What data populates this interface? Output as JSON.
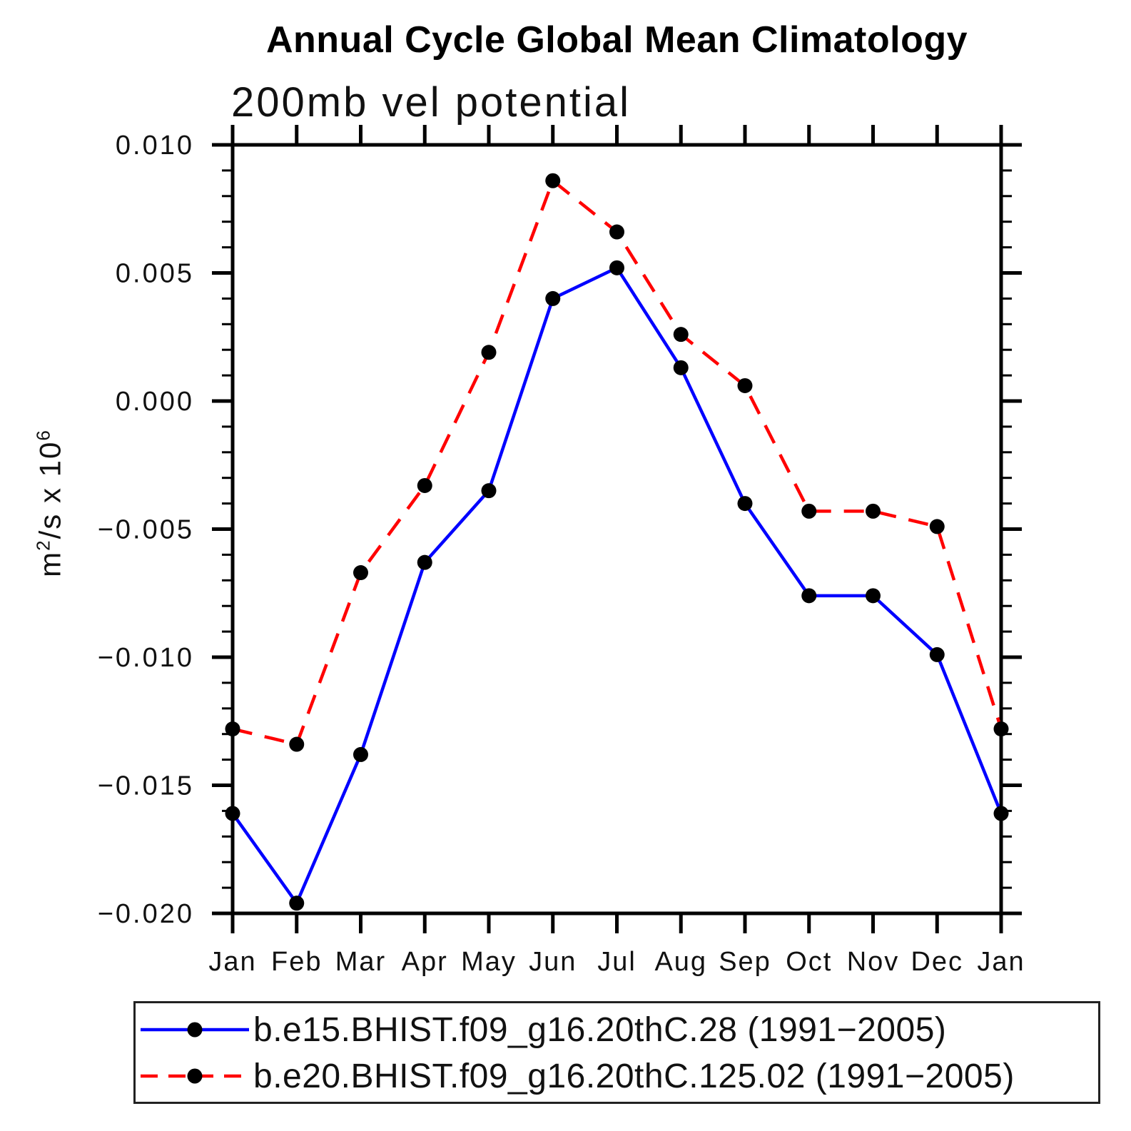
{
  "chart_data": {
    "type": "line",
    "title": "Annual Cycle Global Mean Climatology",
    "subtitle": "200mb vel potential",
    "ylabel": "m2/s x 106",
    "ylabel_parts": {
      "base1": "m",
      "sup1": "2",
      "base2": "/s x 10",
      "sup2": "6"
    },
    "categories": [
      "Jan",
      "Feb",
      "Mar",
      "Apr",
      "May",
      "Jun",
      "Jul",
      "Aug",
      "Sep",
      "Oct",
      "Nov",
      "Dec",
      "Jan"
    ],
    "series": [
      {
        "name": "b.e15.BHIST.f09_g16.20thC.28 (1991−2005)",
        "color": "#0000ff",
        "line_style": "solid",
        "marker": "filled-circle",
        "marker_color": "#000000",
        "values": [
          -0.0161,
          -0.0196,
          -0.0138,
          -0.0063,
          -0.0035,
          0.004,
          0.0052,
          0.0013,
          -0.004,
          -0.0076,
          -0.0076,
          -0.0099,
          -0.0161
        ]
      },
      {
        "name": "b.e20.BHIST.f09_g16.20thC.125.02 (1991−2005)",
        "color": "#ff0000",
        "line_style": "dashed",
        "marker": "filled-circle",
        "marker_color": "#000000",
        "values": [
          -0.0128,
          -0.0134,
          -0.0067,
          -0.0033,
          0.0019,
          0.0086,
          0.0066,
          0.0026,
          0.0006,
          -0.0043,
          -0.0043,
          -0.0049,
          -0.0128
        ]
      }
    ],
    "ylim": [
      -0.02,
      0.01
    ],
    "ytick_major_step": 0.005,
    "ytick_minor_step": 0.001,
    "ytick_labels": [
      "0.010",
      "0.005",
      "0.000",
      "−0.005",
      "−0.010",
      "−0.015",
      "−0.020"
    ],
    "grid": false,
    "legend_position": "bottom",
    "frame_color": "#000000"
  }
}
